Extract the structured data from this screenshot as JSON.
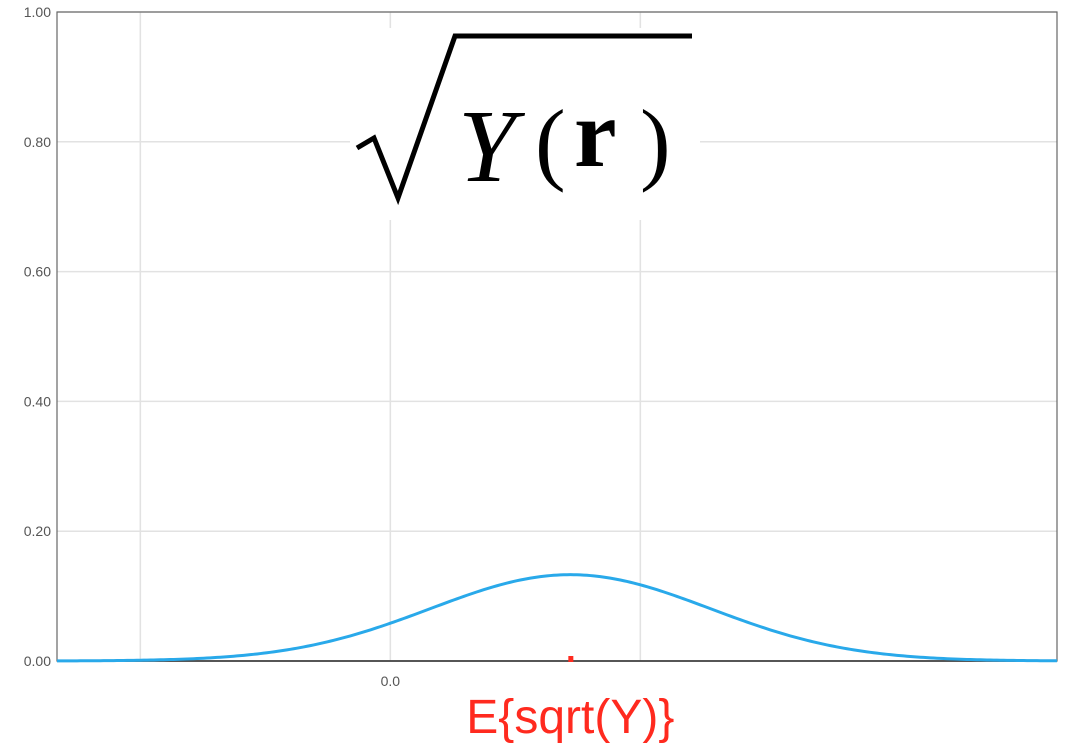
{
  "chart_data": {
    "type": "line",
    "title": "",
    "xlabel": "",
    "ylabel": "",
    "ylim": [
      0,
      1.0
    ],
    "xlim": [
      -1.0,
      2.0
    ],
    "grid": true,
    "y_ticks": [
      "0.00",
      "0.20",
      "0.40",
      "0.60",
      "0.80",
      "1.00"
    ],
    "y_tick_values": [
      0,
      0.2,
      0.4,
      0.6,
      0.8,
      1.0
    ],
    "x_ticks": [
      "0.0"
    ],
    "x_tick_values": [
      0.0
    ],
    "x_grid_values": [
      -0.75,
      0.0,
      0.75
    ],
    "series": [
      {
        "color": "#29a9ea",
        "distribution": {
          "type": "gaussian",
          "mean": 0.54,
          "std": 0.42,
          "peak": 0.133
        },
        "x": [
          -1.0,
          -0.75,
          -0.5,
          -0.25,
          0.0,
          0.25,
          0.54,
          0.75,
          1.0,
          1.25,
          1.5,
          1.75,
          2.0
        ],
        "y": [
          0.0,
          0.001,
          0.002,
          0.014,
          0.06,
          0.107,
          0.133,
          0.117,
          0.067,
          0.025,
          0.006,
          0.001,
          0.0
        ]
      }
    ],
    "formula": {
      "radical_symbol": "√",
      "variable": "Y",
      "open_paren": "(",
      "argument": "r",
      "close_paren": ")"
    },
    "annotation": {
      "text": "E{sqrt(Y)}",
      "x": 0.54,
      "color": "#ff2a1f"
    }
  }
}
